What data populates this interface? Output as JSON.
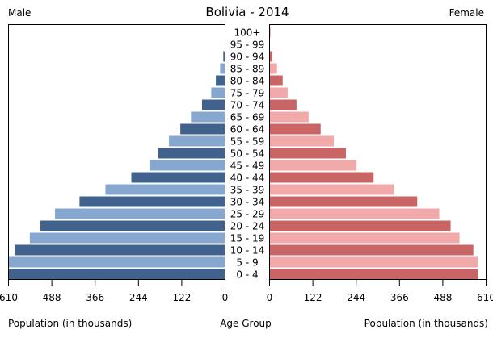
{
  "chart_data": {
    "type": "bar",
    "orientation": "horizontal",
    "title": "Bolivia - 2014",
    "left_label": "Male",
    "right_label": "Female",
    "xlabel_left": "Population (in thousands)",
    "xlabel_center": "Age Group",
    "xlabel_right": "Population (in thousands)",
    "xlim": [
      0,
      610
    ],
    "ticks": [
      "0",
      "122",
      "244",
      "366",
      "488",
      "610"
    ],
    "tick_values": [
      0,
      122,
      244,
      366,
      488,
      610
    ],
    "grid": false,
    "categories": [
      "100+",
      "95 - 99",
      "90 - 94",
      "85 - 89",
      "80 - 84",
      "75 - 79",
      "70 - 74",
      "65 - 69",
      "60 - 64",
      "55 - 59",
      "50 - 54",
      "45 - 49",
      "40 - 44",
      "35 - 39",
      "30 - 34",
      "25 - 29",
      "20 - 24",
      "15 - 19",
      "10 - 14",
      "5 - 9",
      "0 - 4"
    ],
    "series": [
      {
        "name": "Male",
        "colors": [
          "#41628c",
          "#86a8d0"
        ],
        "values": [
          1,
          1,
          5,
          14,
          26,
          39,
          65,
          96,
          126,
          158,
          188,
          213,
          264,
          337,
          410,
          479,
          520,
          550,
          593,
          610,
          610
        ]
      },
      {
        "name": "Female",
        "colors": [
          "#c96565",
          "#f1a9a9"
        ],
        "values": [
          2,
          1,
          8,
          21,
          37,
          51,
          76,
          110,
          144,
          181,
          215,
          245,
          293,
          350,
          416,
          478,
          510,
          535,
          574,
          587,
          587
        ]
      }
    ]
  }
}
